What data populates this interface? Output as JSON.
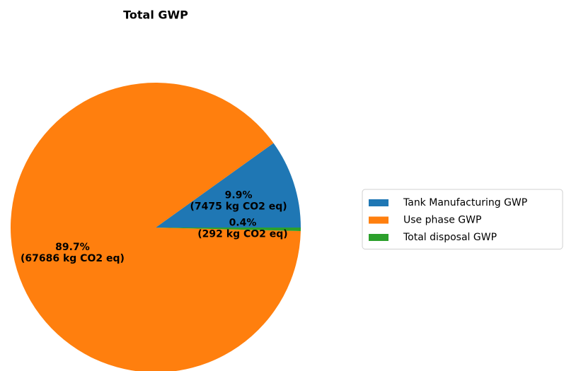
{
  "chart_data": {
    "type": "pie",
    "title": "Total GWP",
    "categories": [
      "Tank Manufacturing GWP",
      "Use phase GWP",
      "Total disposal GWP"
    ],
    "values": [
      7475,
      67686,
      292
    ],
    "value_labels": [
      "9.9%\n(7475 kg CO2 eq)",
      "89.7%\n(67686 kg CO2 eq)",
      "0.4%\n(292 kg CO2 eq)"
    ],
    "colors": [
      "#1f77b4",
      "#ff7f0e",
      "#2ca02c"
    ],
    "legend": "right"
  }
}
